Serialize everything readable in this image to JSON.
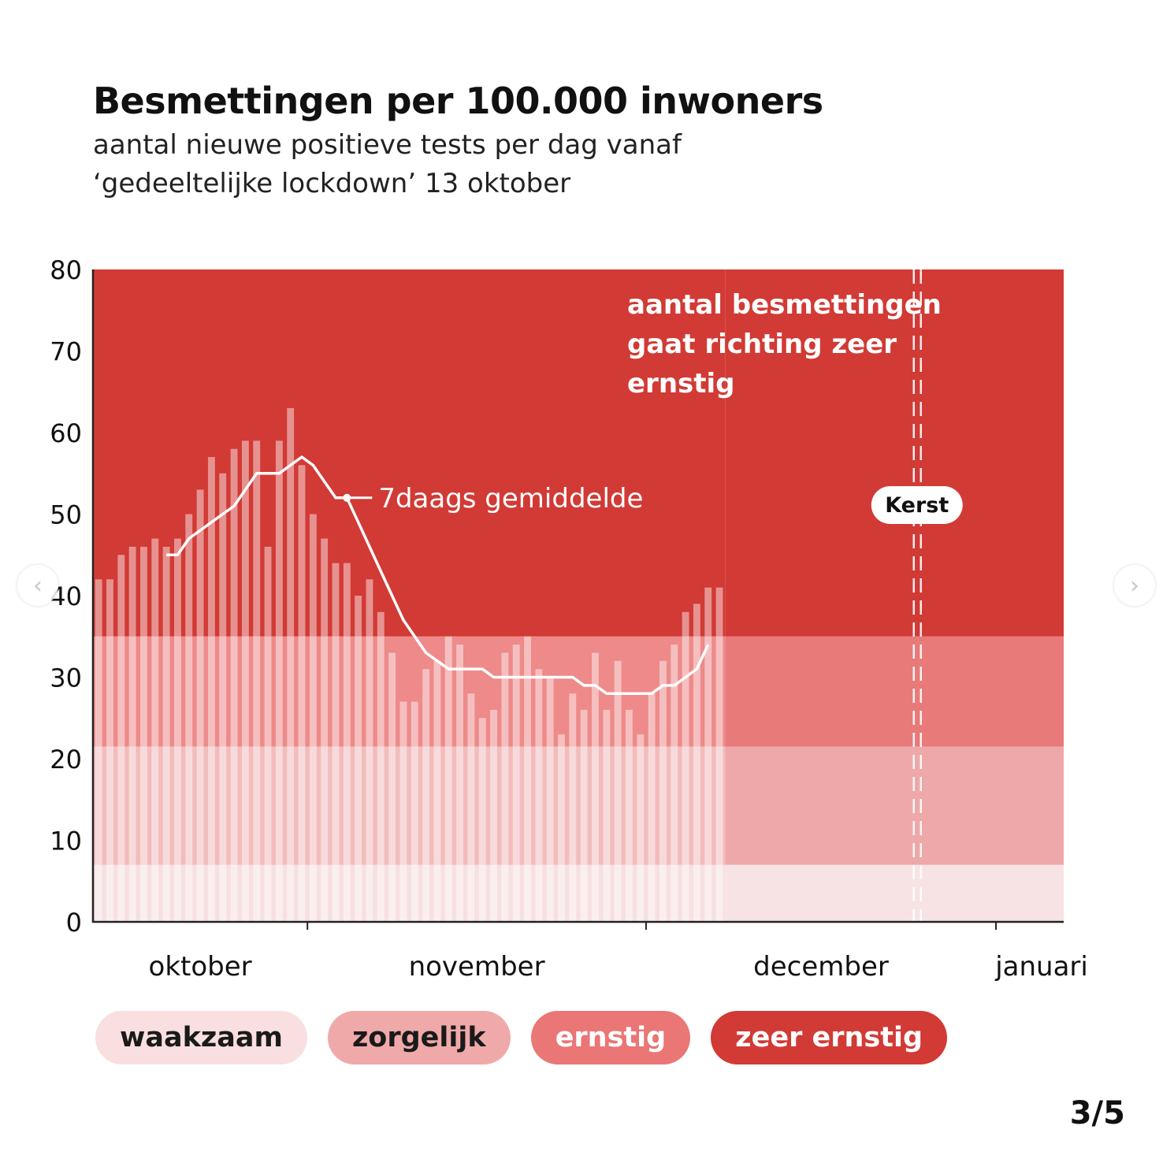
{
  "header": {
    "title": "Besmettingen per 100.000 inwoners",
    "subtitle_line1": "aantal nieuwe positieve tests per dag vanaf",
    "subtitle_line2": "‘gedeeltelijke lockdown’ 13 oktober"
  },
  "pagination": {
    "label": "3/5",
    "prev_icon": "chevron-left-icon",
    "next_icon": "chevron-right-icon"
  },
  "chart_data": {
    "type": "bar",
    "title": "Besmettingen per 100.000 inwoners",
    "subtitle": "aantal nieuwe positieve tests per dag vanaf ‘gedeeltelijke lockdown’ 13 oktober",
    "ylim": [
      0,
      80
    ],
    "yticks": [
      "0",
      "10",
      "20",
      "30",
      "40",
      "50",
      "60",
      "70",
      "80"
    ],
    "x_start": "2020-10-13",
    "x_end": "2021-01-07",
    "months": [
      {
        "label": "oktober",
        "start": "2020-10-13",
        "end": "2020-11-01"
      },
      {
        "label": "november",
        "start": "2020-11-01",
        "end": "2020-12-01"
      },
      {
        "label": "december",
        "start": "2020-12-01",
        "end": "2021-01-01"
      },
      {
        "label": "januari",
        "start": "2021-01-01",
        "end": "2021-01-07"
      }
    ],
    "dates": [
      "2020-10-13",
      "2020-10-14",
      "2020-10-15",
      "2020-10-16",
      "2020-10-17",
      "2020-10-18",
      "2020-10-19",
      "2020-10-20",
      "2020-10-21",
      "2020-10-22",
      "2020-10-23",
      "2020-10-24",
      "2020-10-25",
      "2020-10-26",
      "2020-10-27",
      "2020-10-28",
      "2020-10-29",
      "2020-10-30",
      "2020-10-31",
      "2020-11-01",
      "2020-11-02",
      "2020-11-03",
      "2020-11-04",
      "2020-11-05",
      "2020-11-06",
      "2020-11-07",
      "2020-11-08",
      "2020-11-09",
      "2020-11-10",
      "2020-11-11",
      "2020-11-12",
      "2020-11-13",
      "2020-11-14",
      "2020-11-15",
      "2020-11-16",
      "2020-11-17",
      "2020-11-18",
      "2020-11-19",
      "2020-11-20",
      "2020-11-21",
      "2020-11-22",
      "2020-11-23",
      "2020-11-24",
      "2020-11-25",
      "2020-11-26",
      "2020-11-27",
      "2020-11-28",
      "2020-11-29",
      "2020-11-30",
      "2020-12-01",
      "2020-12-02",
      "2020-12-03",
      "2020-12-04",
      "2020-12-05",
      "2020-12-06",
      "2020-12-07"
    ],
    "series": [
      {
        "type": "bar",
        "values": [
          42,
          42,
          45,
          46,
          46,
          47,
          46,
          47,
          50,
          53,
          57,
          55,
          58,
          59,
          59,
          46,
          59,
          63,
          56,
          50,
          47,
          44,
          44,
          40,
          42,
          38,
          33,
          27,
          27,
          31,
          32,
          35,
          34,
          28,
          25,
          26,
          33,
          34,
          35,
          31,
          30,
          23,
          28,
          26,
          33,
          26,
          32,
          26,
          23,
          28,
          32,
          34,
          38,
          39,
          41,
          41
        ]
      },
      {
        "type": "line",
        "name": "7daags gemiddelde",
        "values": [
          null,
          null,
          null,
          null,
          null,
          null,
          45,
          45,
          47,
          48,
          49,
          50,
          51,
          53,
          55,
          55,
          55,
          56,
          57,
          56,
          54,
          52,
          52,
          49,
          46,
          43,
          40,
          37,
          35,
          33,
          32,
          31,
          31,
          31,
          31,
          30,
          30,
          30,
          30,
          30,
          30,
          30,
          30,
          29,
          29,
          28,
          28,
          28,
          28,
          28,
          29,
          29,
          30,
          31,
          34,
          null
        ]
      }
    ],
    "zones": [
      {
        "label": "waakzaam",
        "from": 0,
        "to": 7,
        "color_past": "#f7e0e1",
        "color_future": "#f7e3e4",
        "pill_bg": "#f9dfe0",
        "pill_text": "#1a1a1a"
      },
      {
        "label": "zorgelijk",
        "from": 7,
        "to": 21.5,
        "color_past": "#f2bcbc",
        "color_future": "#eea8a9",
        "pill_bg": "#f0a9a9",
        "pill_text": "#1a1a1a"
      },
      {
        "label": "ernstig",
        "from": 21.5,
        "to": 35,
        "color_past": "#ee8a8a",
        "color_future": "#e87a7a",
        "pill_bg": "#ea7676",
        "pill_text": "#ffffff"
      },
      {
        "label": "zeer ernstig",
        "from": 35,
        "to": 80,
        "color_past": "#d23a35",
        "color_future": "#d23a35",
        "pill_bg": "#d23a35",
        "pill_text": "#ffffff"
      }
    ],
    "colors": {
      "bar": "rgba(255,255,255,0.45)",
      "line": "#ffffff",
      "accent": "#d23a35"
    },
    "annotations": {
      "avg_label": "7daags gemiddelde",
      "note_lines": [
        "aantal besmettingen",
        "gaat richting zeer",
        "ernstig"
      ],
      "event_date": "2020-12-25",
      "event_label": "Kerst"
    },
    "grid": false,
    "legend": "bottom-left"
  }
}
